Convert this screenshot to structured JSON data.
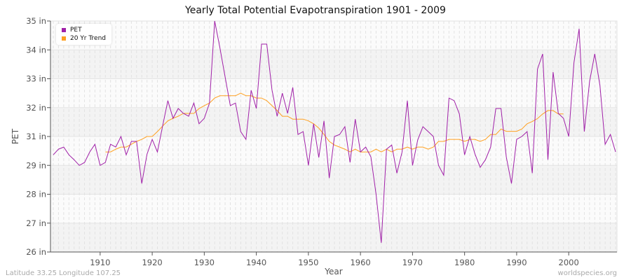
{
  "chart_data": {
    "type": "line",
    "title": "Yearly Total Potential Evapotranspiration 1901 - 2009",
    "xlabel": "Year",
    "ylabel": "PET",
    "y_ticks": [
      26,
      27,
      28,
      29,
      31,
      32,
      33,
      34,
      35
    ],
    "y_tick_labels": [
      "26 in",
      "27 in",
      "28 in",
      "29 in",
      "31 in",
      "32 in",
      "33 in",
      "34 in",
      "35 in"
    ],
    "x_ticks": [
      1910,
      1920,
      1930,
      1940,
      1950,
      1960,
      1970,
      1980,
      1990,
      2000
    ],
    "xlim": [
      1901,
      2009
    ],
    "ylim": [
      26,
      35
    ],
    "grid": true,
    "legend_placement": "top-left",
    "series": [
      {
        "name": "PET",
        "color": "#a020a8",
        "x_start": 1901,
        "values": [
          29.73,
          30.12,
          30.27,
          29.73,
          29.39,
          29.0,
          29.2,
          29.93,
          30.46,
          29.0,
          29.2,
          30.46,
          30.27,
          31.0,
          29.73,
          30.66,
          30.66,
          28.37,
          29.78,
          30.8,
          29.93,
          31.36,
          32.24,
          31.63,
          31.97,
          31.8,
          31.7,
          32.16,
          31.44,
          31.63,
          32.16,
          35.0,
          34.08,
          33.06,
          32.07,
          32.16,
          31.17,
          30.8,
          32.6,
          31.97,
          34.2,
          34.2,
          32.62,
          31.7,
          32.5,
          31.8,
          32.7,
          31.07,
          31.17,
          29.0,
          31.44,
          29.54,
          31.54,
          28.56,
          31.0,
          31.07,
          31.34,
          29.2,
          31.6,
          29.93,
          30.27,
          29.59,
          28.0,
          26.32,
          30.12,
          30.41,
          28.73,
          29.93,
          32.24,
          29.0,
          30.76,
          31.34,
          31.17,
          31.0,
          29.0,
          28.66,
          32.33,
          32.24,
          31.78,
          29.73,
          31.0,
          29.78,
          28.93,
          29.39,
          30.27,
          31.97,
          31.97,
          29.59,
          28.37,
          30.8,
          31.0,
          31.17,
          28.73,
          33.33,
          33.86,
          29.39,
          33.23,
          31.8,
          31.63,
          31.0,
          33.55,
          34.73,
          31.17,
          32.9,
          33.86,
          32.77,
          30.46,
          31.07,
          29.93
        ]
      },
      {
        "name": "20 Yr Trend",
        "color": "#ffa020",
        "x_start": 1911,
        "values": [
          29.93,
          29.93,
          30.12,
          30.27,
          30.27,
          30.46,
          30.66,
          30.8,
          31.0,
          31.0,
          31.17,
          31.36,
          31.54,
          31.63,
          31.7,
          31.8,
          31.8,
          31.8,
          31.97,
          32.07,
          32.16,
          32.33,
          32.41,
          32.41,
          32.41,
          32.41,
          32.5,
          32.41,
          32.41,
          32.33,
          32.33,
          32.24,
          32.07,
          31.9,
          31.7,
          31.7,
          31.6,
          31.6,
          31.6,
          31.54,
          31.44,
          31.29,
          31.07,
          30.66,
          30.41,
          30.27,
          30.12,
          29.93,
          30.12,
          29.93,
          29.93,
          29.93,
          30.12,
          29.93,
          30.12,
          29.93,
          30.12,
          30.12,
          30.27,
          30.12,
          30.27,
          30.27,
          30.12,
          30.27,
          30.66,
          30.66,
          30.8,
          30.8,
          30.8,
          30.66,
          30.8,
          30.8,
          30.66,
          30.8,
          31.07,
          31.07,
          31.26,
          31.18,
          31.18,
          31.18,
          31.26,
          31.44,
          31.52,
          31.62,
          31.78,
          31.9,
          31.9,
          31.78,
          31.78
        ]
      }
    ]
  },
  "footer": {
    "location": "Latitude 33.25 Longitude 107.25",
    "site": "worldspecies.org"
  }
}
